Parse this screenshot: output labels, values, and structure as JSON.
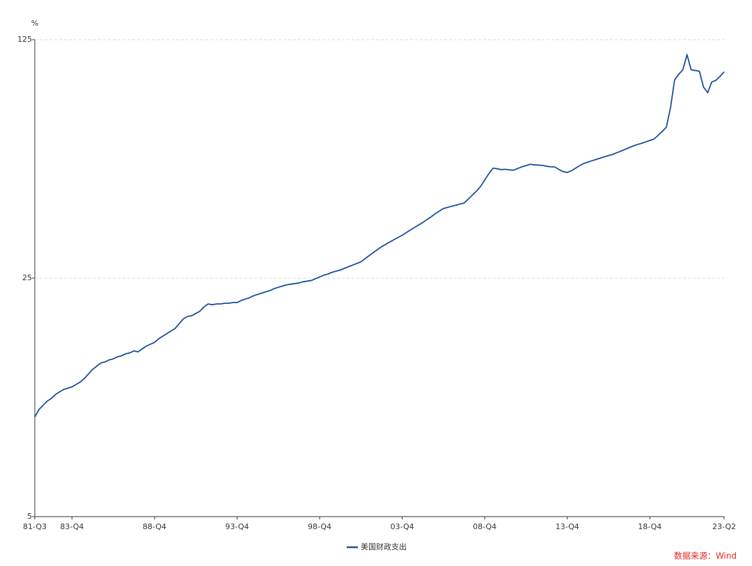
{
  "chart_data": {
    "type": "line",
    "y_unit": "%",
    "log_scale": true,
    "grid": true,
    "source": "数据来源：Wind",
    "categories": [
      "81-Q3",
      null,
      null,
      null,
      null,
      null,
      null,
      null,
      null,
      "83-Q4",
      null,
      null,
      null,
      null,
      null,
      null,
      null,
      null,
      null,
      null,
      null,
      null,
      null,
      null,
      null,
      null,
      null,
      null,
      null,
      "88-Q4",
      null,
      null,
      null,
      null,
      null,
      null,
      null,
      null,
      null,
      null,
      null,
      null,
      null,
      null,
      null,
      null,
      null,
      null,
      null,
      "93-Q4",
      null,
      null,
      null,
      null,
      null,
      null,
      null,
      null,
      null,
      null,
      null,
      null,
      null,
      null,
      null,
      null,
      null,
      null,
      null,
      "98-Q4",
      null,
      null,
      null,
      null,
      null,
      null,
      null,
      null,
      null,
      null,
      null,
      null,
      null,
      null,
      null,
      null,
      null,
      null,
      null,
      "03-Q4",
      null,
      null,
      null,
      null,
      null,
      null,
      null,
      null,
      null,
      null,
      null,
      null,
      null,
      null,
      null,
      null,
      null,
      null,
      null,
      "08-Q4",
      null,
      null,
      null,
      null,
      null,
      null,
      null,
      null,
      null,
      null,
      null,
      null,
      null,
      null,
      null,
      null,
      null,
      null,
      null,
      "13-Q4",
      null,
      null,
      null,
      null,
      null,
      null,
      null,
      null,
      null,
      null,
      null,
      null,
      null,
      null,
      null,
      null,
      null,
      null,
      null,
      "18-Q4",
      null,
      null,
      null,
      null,
      null,
      null,
      null,
      null,
      null,
      null,
      null,
      null,
      null,
      null,
      null,
      null,
      null,
      "23-Q2"
    ],
    "series": [
      {
        "name": "美国财政支出",
        "color": "#1a4f9c",
        "values": [
          9.8,
          10.3,
          10.6,
          10.9,
          11.1,
          11.4,
          11.6,
          11.8,
          11.9,
          12.0,
          12.2,
          12.4,
          12.7,
          13.1,
          13.5,
          13.8,
          14.1,
          14.2,
          14.4,
          14.5,
          14.7,
          14.8,
          15.0,
          15.1,
          15.3,
          15.2,
          15.5,
          15.8,
          16.0,
          16.2,
          16.6,
          16.9,
          17.2,
          17.5,
          17.8,
          18.4,
          19.0,
          19.3,
          19.4,
          19.7,
          20.0,
          20.6,
          21.0,
          20.9,
          21.0,
          21.0,
          21.1,
          21.1,
          21.2,
          21.2,
          21.5,
          21.7,
          21.9,
          22.2,
          22.4,
          22.6,
          22.8,
          23.0,
          23.3,
          23.5,
          23.7,
          23.9,
          24.0,
          24.1,
          24.2,
          24.4,
          24.5,
          24.6,
          24.9,
          25.2,
          25.5,
          25.7,
          26.0,
          26.2,
          26.4,
          26.7,
          27.0,
          27.3,
          27.6,
          27.9,
          28.5,
          29.1,
          29.7,
          30.3,
          30.9,
          31.4,
          31.9,
          32.4,
          32.9,
          33.4,
          34.0,
          34.6,
          35.2,
          35.8,
          36.4,
          37.1,
          37.8,
          38.6,
          39.3,
          40.0,
          40.3,
          40.6,
          40.9,
          41.2,
          41.5,
          42.6,
          43.8,
          45.0,
          46.4,
          48.5,
          50.6,
          52.5,
          52.3,
          52.0,
          52.1,
          51.9,
          51.8,
          52.4,
          53.0,
          53.4,
          53.9,
          53.7,
          53.6,
          53.5,
          53.2,
          53.0,
          52.9,
          52.0,
          51.3,
          51.0,
          51.6,
          52.5,
          53.4,
          54.2,
          54.7,
          55.2,
          55.7,
          56.2,
          56.7,
          57.2,
          57.6,
          58.3,
          58.9,
          59.6,
          60.3,
          61.0,
          61.6,
          62.1,
          62.7,
          63.3,
          63.9,
          65.5,
          67.3,
          69.2,
          78.9,
          95.2,
          99.0,
          102,
          113,
          102,
          101.5,
          101,
          90.8,
          87.4,
          93.9,
          95,
          97.5,
          100.6
        ]
      }
    ],
    "ylim": [
      5,
      125
    ],
    "yticks": [
      5,
      25,
      125
    ]
  }
}
